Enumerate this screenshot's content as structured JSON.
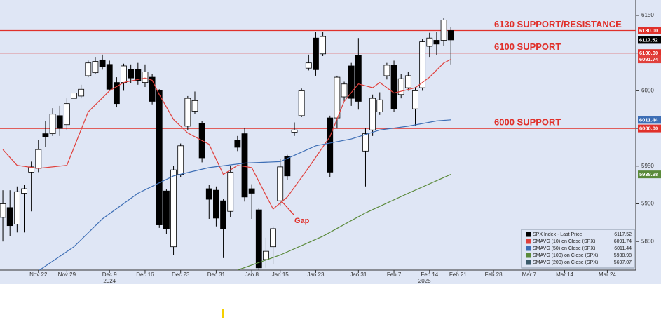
{
  "chart_data": {
    "type": "candlestick",
    "xlim": [
      -0.4,
      89
    ],
    "ylim": [
      5812,
      6170.5
    ],
    "yticks": [
      5850,
      5900,
      5950,
      6000,
      6050,
      6100,
      6150
    ],
    "xticks": [
      {
        "value": 5,
        "label": "Nov 22"
      },
      {
        "value": 9,
        "label": "Nov 29"
      },
      {
        "value": 15,
        "label": "Dec 9"
      },
      {
        "value": 20,
        "label": "Dec 16"
      },
      {
        "value": 25,
        "label": "Dec 23"
      },
      {
        "value": 30,
        "label": "Dec 31"
      },
      {
        "value": 35,
        "label": "Jan 8"
      },
      {
        "value": 39,
        "label": "Jan 15"
      },
      {
        "value": 44,
        "label": "Jan 23"
      },
      {
        "value": 50,
        "label": "Jan 31"
      },
      {
        "value": 55,
        "label": "Feb 7"
      },
      {
        "value": 60,
        "label": "Feb 14"
      },
      {
        "value": 64,
        "label": "Feb 21"
      },
      {
        "value": 69,
        "label": "Feb 28"
      },
      {
        "value": 74,
        "label": "Mar 7"
      },
      {
        "value": 79,
        "label": "Mar 14"
      },
      {
        "value": 85,
        "label": "Mar 24"
      }
    ],
    "year_labels": [
      {
        "value": 15,
        "label": "2024"
      },
      {
        "value": 59.3,
        "label": "2025"
      }
    ],
    "series": [
      {
        "name": "SPX Index - Last Price",
        "color": "#000000",
        "last": 6117.52,
        "open": [
          5882,
          5895,
          5873,
          5914,
          5942,
          5947,
          5993,
          5993,
          6017,
          6005,
          6040,
          6043,
          6070,
          6074,
          6091,
          6085,
          6061,
          6061,
          6078,
          6078,
          6061,
          6068,
          6050,
          5917,
          5843,
          5939,
          6003,
          6023,
          6007,
          5920,
          5918,
          5904,
          5890,
          5984,
          5993,
          5920,
          5892,
          5826,
          5843,
          5904,
          5963,
          5995,
          6017,
          6080,
          6120,
          6099,
          6014,
          6014,
          6042,
          6083,
          6097,
          5970,
          5998,
          6022,
          6070,
          6084,
          6045,
          6054,
          6026,
          6054,
          6109,
          6117,
          6117,
          6130
        ],
        "high": [
          5918,
          5918,
          5923,
          5925,
          5956,
          5985,
          6010,
          6027,
          6030,
          6040,
          6055,
          6058,
          6090,
          6095,
          6098,
          6090,
          6068,
          6086,
          6085,
          6087,
          6085,
          6072,
          6052,
          5920,
          5950,
          5980,
          6043,
          6049,
          6010,
          5925,
          5923,
          5906,
          5950,
          5990,
          6001,
          5926,
          5894,
          5855,
          5870,
          5960,
          5965,
          6008,
          6053,
          6098,
          6128,
          6128,
          6017,
          6070,
          6062,
          6087,
          6120,
          6000,
          6045,
          6048,
          6087,
          6090,
          6072,
          6075,
          6055,
          6119,
          6127,
          6128,
          6147,
          6135
        ],
        "low": [
          5850,
          5857,
          5862,
          5862,
          5890,
          5942,
          5975,
          5990,
          5990,
          5998,
          6035,
          6040,
          6068,
          6072,
          6078,
          6050,
          6028,
          6050,
          6060,
          6058,
          6055,
          6032,
          5868,
          5860,
          5832,
          5935,
          5998,
          6019,
          5955,
          5880,
          5870,
          5828,
          5882,
          5970,
          5903,
          5880,
          5812,
          5815,
          5820,
          5898,
          5932,
          5990,
          6015,
          6077,
          6070,
          6096,
          5935,
          6000,
          6035,
          6030,
          6025,
          5923,
          5990,
          6018,
          6065,
          6022,
          6040,
          6050,
          6003,
          6050,
          6095,
          6097,
          6110,
          6085
        ],
        "close": [
          5900,
          5871,
          5916,
          5920,
          5949,
          5972,
          5989,
          6019,
          6000,
          6033,
          6047,
          6052,
          6087,
          6089,
          6082,
          6052,
          6033,
          6083,
          6067,
          6063,
          6075,
          6036,
          5872,
          5867,
          5945,
          5977,
          6040,
          6037,
          5961,
          5906,
          5881,
          5867,
          5942,
          5975,
          5909,
          5914,
          5815,
          5837,
          5867,
          5949,
          5937,
          5998,
          6050,
          6087,
          6078,
          6122,
          5942,
          6068,
          6059,
          6040,
          6036,
          5993,
          6040,
          6038,
          6084,
          6026,
          6066,
          6070,
          6050,
          6115,
          6120,
          6112,
          6144,
          6117.52
        ]
      },
      {
        "name": "SMAVG (10)  on Close (SPX)",
        "color": "#e0403c",
        "last": 6091.74,
        "x": [
          0,
          2,
          5,
          9,
          12,
          15,
          17,
          20,
          21,
          22,
          24,
          26,
          29,
          31,
          33,
          35,
          38,
          40,
          43,
          46,
          48,
          50,
          52,
          53,
          55,
          58,
          60,
          62,
          63
        ],
        "values": [
          5972,
          5951,
          5947,
          5951,
          6022,
          6050,
          6061,
          6067,
          6064,
          6045,
          6012,
          5994,
          5979,
          5939,
          5951,
          5948,
          5893,
          5909,
          5948,
          5989,
          6036,
          6059,
          6054,
          6061,
          6047,
          6054,
          6068,
          6087,
          6091.74
        ]
      },
      {
        "name": "SMAVG (50)  on Close (SPX)",
        "color": "#3d6eb5",
        "last": 6011.44,
        "x": [
          5,
          10,
          14,
          19,
          24,
          29,
          34,
          39,
          44,
          49,
          53,
          57,
          61,
          63
        ],
        "values": [
          5811,
          5843,
          5880,
          5914,
          5937,
          5948,
          5954,
          5956,
          5977,
          5986,
          5998,
          6003,
          6010,
          6011.44
        ]
      },
      {
        "name": "SMAVG (100)  on Close (SPX)",
        "color": "#5a8a3a",
        "last": 5938.98,
        "x": [
          33,
          39,
          45,
          51,
          57,
          63
        ],
        "values": [
          5812,
          5832,
          5857,
          5888,
          5914,
          5938.98
        ]
      },
      {
        "name": "SMAVG (200)  on Close (SPX)",
        "color": "#3a5a6a",
        "last": 5697.07
      }
    ],
    "hlines": [
      {
        "value": 6130,
        "label": "6130.00",
        "text": "6130 SUPPORT/RESISTANCE"
      },
      {
        "value": 6100,
        "label": "6100.00",
        "text": "6100 SUPPORT"
      },
      {
        "value": 6000,
        "label": "6000.00",
        "text": "6000 SUPPORT"
      }
    ],
    "hline_color": "#e0302a",
    "annotation": "Gap"
  }
}
